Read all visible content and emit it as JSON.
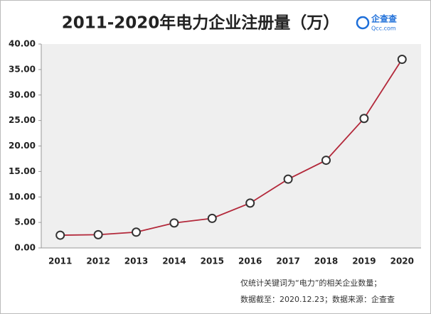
{
  "chart_data": {
    "type": "line",
    "title": "2011-2020年电力企业注册量（万）",
    "logo_text": "企查查",
    "logo_subtext": "Qcc.com",
    "categories": [
      "2011",
      "2012",
      "2013",
      "2014",
      "2015",
      "2016",
      "2017",
      "2018",
      "2019",
      "2020"
    ],
    "values": [
      2.5,
      2.6,
      3.1,
      4.9,
      5.8,
      8.8,
      13.5,
      17.2,
      25.4,
      37.0
    ],
    "color": "#b3283a",
    "ylim": [
      0,
      40
    ],
    "yticks": [
      {
        "value": 0,
        "label": "0.00"
      },
      {
        "value": 5,
        "label": "5.00"
      },
      {
        "value": 10,
        "label": "10.00"
      },
      {
        "value": 15,
        "label": "15.00"
      },
      {
        "value": 20,
        "label": "20.00"
      },
      {
        "value": 25,
        "label": "25.00"
      },
      {
        "value": 30,
        "label": "30.00"
      },
      {
        "value": 35,
        "label": "35.00"
      },
      {
        "value": 40,
        "label": "40.00"
      }
    ],
    "grid": false,
    "notes": [
      "仅统计关键词为“电力”的相关企业数量；",
      "数据截至：2020.12.23；数据来源：企查查"
    ]
  }
}
